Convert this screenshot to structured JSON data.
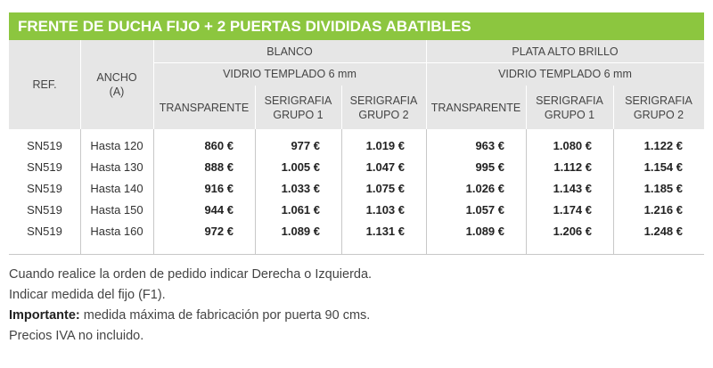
{
  "title": "FRENTE DE DUCHA FIJO + 2 PUERTAS DIVIDIDAS ABATIBLES",
  "table": {
    "ref_header": "REF.",
    "ancho_header": [
      "ANCHO",
      "(A)"
    ],
    "groups": [
      {
        "name": "BLANCO",
        "glass": "VIDRIO TEMPLADO 6 mm",
        "columns": [
          "TRANSPARENTE",
          "SERIGRAFIA GRUPO 1",
          "SERIGRAFIA GRUPO 2"
        ]
      },
      {
        "name": "PLATA ALTO BRILLO",
        "glass": "VIDRIO TEMPLADO 6 mm",
        "columns": [
          "TRANSPARENTE",
          "SERIGRAFIA GRUPO 1",
          "SERIGRAFIA GRUPO 2"
        ]
      }
    ],
    "rows": [
      [
        "SN519",
        "Hasta 120",
        "860 €",
        "977 €",
        "1.019 €",
        "963 €",
        "1.080 €",
        "1.122 €"
      ],
      [
        "SN519",
        "Hasta 130",
        "888 €",
        "1.005 €",
        "1.047 €",
        "995 €",
        "1.112 €",
        "1.154 €"
      ],
      [
        "SN519",
        "Hasta 140",
        "916 €",
        "1.033 €",
        "1.075 €",
        "1.026 €",
        "1.143 €",
        "1.185 €"
      ],
      [
        "SN519",
        "Hasta 150",
        "944 €",
        "1.061 €",
        "1.103 €",
        "1.057 €",
        "1.174 €",
        "1.216 €"
      ],
      [
        "SN519",
        "Hasta 160",
        "972 €",
        "1.089 €",
        "1.131 €",
        "1.089 €",
        "1.206 €",
        "1.248 €"
      ]
    ]
  },
  "notes": [
    {
      "text": "Cuando realice la orden de pedido indicar Derecha o Izquierda."
    },
    {
      "text": "Indicar medida del fijo (F1)."
    },
    {
      "bold": "Importante:",
      "text": "medida máxima de fabricación por puerta 90 cms."
    },
    {
      "text": "Precios IVA no incluido."
    }
  ]
}
